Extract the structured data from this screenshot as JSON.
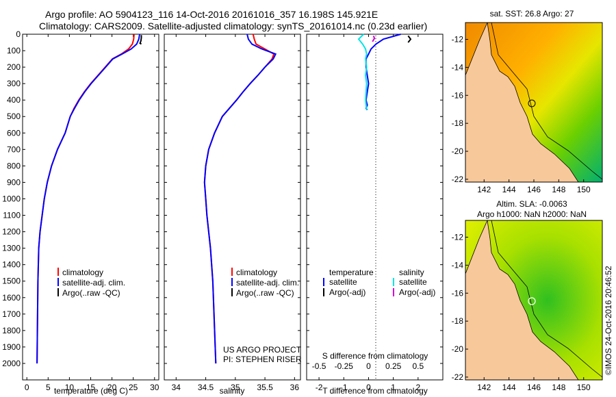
{
  "header": {
    "line1": "Argo profile: AO 5904123_116 14-Oct-2016 20161016_357 16.198S 145.921E",
    "line2": "Climatology: CARS2009. Satellite-adjusted climatology: synTS_20161014.nc (0.23d earlier)"
  },
  "side_stamp": "©IMOS 24-Oct-2016 20:46:52",
  "project_note": {
    "line1": "US ARGO PROJECT",
    "line2": "PI: STEPHEN RISER"
  },
  "colors": {
    "climatology": "#ff0000",
    "satellite": "#0000ff",
    "argo": "#000000",
    "sal_satellite": "#00e5e5",
    "sal_argo": "#d400d4",
    "land": "#f7c89a"
  },
  "chart_data": [
    {
      "type": "line",
      "id": "temperature",
      "xlabel": "temperature (deg C)",
      "xlim": [
        -1,
        31
      ],
      "ylim": [
        0,
        2100
      ],
      "y_reversed": true,
      "xticks": [
        "0",
        "5",
        "10",
        "15",
        "20",
        "25",
        "30"
      ],
      "yticks": [
        "0",
        "100",
        "200",
        "300",
        "400",
        "500",
        "600",
        "700",
        "800",
        "900",
        "1000",
        "1100",
        "1200",
        "1300",
        "1400",
        "1500",
        "1600",
        "1700",
        "1800",
        "1900",
        "2000"
      ],
      "legend": [
        "climatology",
        "satellite-adj. clim.",
        "Argo(..raw -QC)"
      ],
      "series": [
        {
          "name": "climatology",
          "x": [
            25.2,
            25.1,
            24.8,
            23.9,
            22.2,
            20.1,
            18.4,
            16.7,
            15.0,
            13.5,
            12.2,
            11.1,
            10.2,
            9.0,
            7.2,
            5.8,
            4.8,
            4.1,
            3.6,
            3.1,
            2.8,
            2.6,
            2.4
          ],
          "y": [
            0,
            30,
            60,
            90,
            120,
            150,
            200,
            250,
            300,
            350,
            400,
            450,
            500,
            600,
            700,
            800,
            900,
            1000,
            1100,
            1200,
            1300,
            1500,
            2000
          ]
        },
        {
          "name": "satellite-adj. clim.",
          "x": [
            26.5,
            26.3,
            25.8,
            24.5,
            22.4,
            20.2,
            18.5,
            16.8,
            15.1,
            13.6,
            12.3,
            11.2,
            10.2,
            9.0,
            7.2,
            5.8,
            4.8,
            4.1,
            3.6,
            3.1,
            2.8,
            2.6,
            2.4
          ],
          "y": [
            0,
            30,
            60,
            90,
            120,
            150,
            200,
            250,
            300,
            350,
            400,
            450,
            500,
            600,
            700,
            800,
            900,
            1000,
            1100,
            1200,
            1300,
            1500,
            2000
          ]
        },
        {
          "name": "Argo(..raw -QC)",
          "x": [
            26.9,
            26.9,
            26.8,
            26.6,
            26.9
          ],
          "y": [
            5,
            20,
            40,
            55,
            60
          ]
        }
      ]
    },
    {
      "type": "line",
      "id": "salinity",
      "xlabel": "salinity",
      "xlim": [
        33.8,
        36.1
      ],
      "ylim": [
        0,
        2100
      ],
      "y_reversed": true,
      "xticks": [
        "34",
        "34.5",
        "35",
        "35.5",
        "36"
      ],
      "legend": [
        "climatology",
        "satellite-adj. clim.",
        "Argo(..raw -QC)"
      ],
      "series": [
        {
          "name": "climatology",
          "x": [
            35.3,
            35.32,
            35.35,
            35.5,
            35.65,
            35.62,
            35.5,
            35.38,
            35.25,
            35.13,
            35.02,
            34.9,
            34.78,
            34.65,
            34.55,
            34.5,
            34.48,
            34.5,
            34.52,
            34.55,
            34.58,
            34.62,
            34.67
          ],
          "y": [
            0,
            30,
            60,
            90,
            120,
            150,
            200,
            250,
            300,
            350,
            400,
            450,
            500,
            600,
            700,
            800,
            900,
            1000,
            1100,
            1200,
            1300,
            1500,
            2000
          ]
        },
        {
          "name": "satellite-adj. clim.",
          "x": [
            35.2,
            35.22,
            35.28,
            35.45,
            35.68,
            35.64,
            35.5,
            35.38,
            35.25,
            35.13,
            35.02,
            34.9,
            34.78,
            34.65,
            34.55,
            34.5,
            34.48,
            34.5,
            34.52,
            34.55,
            34.58,
            34.62,
            34.67
          ],
          "y": [
            0,
            30,
            60,
            90,
            120,
            150,
            200,
            250,
            300,
            350,
            400,
            450,
            500,
            600,
            700,
            800,
            900,
            1000,
            1100,
            1200,
            1300,
            1500,
            2000
          ]
        },
        {
          "name": "Argo(..raw -QC)",
          "x": [],
          "y": []
        }
      ]
    },
    {
      "type": "line",
      "id": "difference",
      "xlabel_top": "S difference from climatology",
      "xlabel": "T difference from climatology",
      "xlim": [
        -2.5,
        3
      ],
      "ylim": [
        0,
        2100
      ],
      "y_reversed": true,
      "xticks": [
        "-2",
        "-1",
        "0",
        "1",
        "2"
      ],
      "xticks_top": [
        "-0.5",
        "-0.25",
        "0",
        "0.25",
        "0.5"
      ],
      "legend_temperature_title": "temperature",
      "legend_salinity_title": "salinity",
      "legend": [
        "satellite",
        "Argo(-adj)",
        "satellite",
        "Argo(-adj)"
      ],
      "series": [
        {
          "name": "temperature satellite",
          "x": [
            1.3,
            0.6,
            0.3,
            0.1,
            0.0,
            -0.1,
            -0.1,
            -0.05,
            0.0,
            -0.05,
            -0.1,
            -0.05,
            -0.1,
            -0.05
          ],
          "y": [
            0,
            30,
            60,
            90,
            120,
            150,
            200,
            250,
            300,
            350,
            400,
            430,
            450,
            460
          ]
        },
        {
          "name": "temperature Argo(-adj)",
          "x": [
            1.6,
            1.7,
            1.6
          ],
          "y": [
            10,
            30,
            50
          ]
        },
        {
          "name": "salinity satellite",
          "x": [
            -0.05,
            -0.1,
            -0.06,
            -0.03,
            -0.02,
            -0.03,
            -0.02,
            -0.03,
            -0.02,
            -0.03,
            -0.02
          ],
          "y": [
            0,
            30,
            60,
            90,
            120,
            150,
            200,
            250,
            300,
            400,
            460
          ]
        },
        {
          "name": "salinity Argo(-adj)",
          "x": [
            0.05,
            0.06,
            0.04
          ],
          "y": [
            10,
            25,
            45
          ]
        }
      ]
    },
    {
      "type": "heatmap",
      "id": "sst-map",
      "title": "sat. SST: 26.8 Argo: 27",
      "xticks": [
        "142",
        "144",
        "146",
        "148",
        "150"
      ],
      "yticks": [
        "-12",
        "-14",
        "-16",
        "-18",
        "-20",
        "-22"
      ],
      "xlim": [
        140.5,
        151.5
      ],
      "ylim": [
        -22.2,
        -10.8
      ],
      "float_position": [
        145.921,
        -16.198
      ]
    },
    {
      "type": "heatmap",
      "id": "sla-map",
      "title_line1": "Altim. SLA: -0.0063",
      "title_line2": "Argo h1000: NaN h2000: NaN",
      "xticks": [
        "142",
        "144",
        "146",
        "148",
        "150"
      ],
      "yticks": [
        "-12",
        "-14",
        "-16",
        "-18",
        "-20",
        "-22"
      ],
      "xlim": [
        140.5,
        151.5
      ],
      "ylim": [
        -22.2,
        -10.8
      ],
      "float_position": [
        145.921,
        -16.198
      ]
    }
  ]
}
